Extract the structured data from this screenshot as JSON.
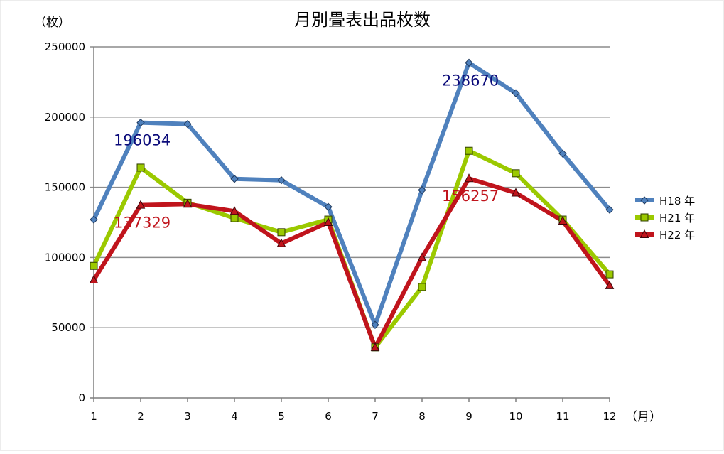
{
  "chart_data": {
    "type": "line",
    "title": "月別畳表出品枚数",
    "ylabel": "（枚）",
    "xlabel": "（月）",
    "categories": [
      "1",
      "2",
      "3",
      "4",
      "5",
      "6",
      "7",
      "8",
      "9",
      "10",
      "11",
      "12"
    ],
    "ylim": [
      0,
      250000
    ],
    "yticks": [
      0,
      50000,
      100000,
      150000,
      200000,
      250000
    ],
    "ytick_labels": [
      "0",
      "50000",
      "100000",
      "150000",
      "200000",
      "250000"
    ],
    "grid": true,
    "legend_position": "right",
    "series": [
      {
        "name": "H18 年",
        "color": "#4f81bd",
        "marker": "diamond",
        "values": [
          127000,
          196034,
          195000,
          156000,
          155000,
          136000,
          52000,
          148000,
          238670,
          217000,
          174000,
          134000
        ]
      },
      {
        "name": "H21 年",
        "color": "#9bc900",
        "marker": "square",
        "values": [
          94000,
          164000,
          139000,
          128000,
          118000,
          127000,
          36000,
          79000,
          176000,
          160000,
          127000,
          88000
        ]
      },
      {
        "name": "H22 年",
        "color": "#c0141c",
        "marker": "triangle",
        "values": [
          84000,
          137329,
          138000,
          133000,
          110000,
          125000,
          36000,
          100000,
          156257,
          146000,
          126000,
          80000
        ]
      }
    ],
    "annotations": [
      {
        "text": "196034",
        "series": 0,
        "index": 1,
        "color": "#0b0b7a"
      },
      {
        "text": "238670",
        "series": 0,
        "index": 8,
        "color": "#0b0b7a"
      },
      {
        "text": "137329",
        "series": 2,
        "index": 1,
        "color": "#c0141c"
      },
      {
        "text": "156257",
        "series": 2,
        "index": 8,
        "color": "#c0141c"
      }
    ]
  }
}
